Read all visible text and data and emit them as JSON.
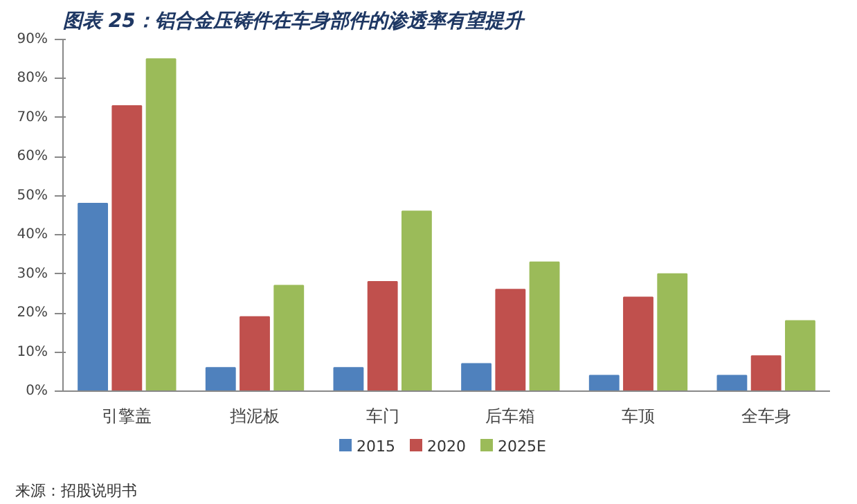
{
  "chart_data": {
    "type": "bar",
    "title": "图表 25：铝合金压铸件在车身部件的渗透率有望提升",
    "categories": [
      "引擎盖",
      "挡泥板",
      "车门",
      "后车箱",
      "车顶",
      "全车身"
    ],
    "series": [
      {
        "name": "2015",
        "color": "#4f81bd",
        "values": [
          48,
          6,
          6,
          7,
          4,
          4
        ]
      },
      {
        "name": "2020",
        "color": "#c0504d",
        "values": [
          73,
          19,
          28,
          26,
          24,
          9
        ]
      },
      {
        "name": "2025E",
        "color": "#9bbb59",
        "values": [
          85,
          27,
          46,
          33,
          30,
          18
        ]
      }
    ],
    "ylim": [
      0,
      90
    ],
    "yticks": [
      {
        "value": 0,
        "label": "0%"
      },
      {
        "value": 10,
        "label": "10%"
      },
      {
        "value": 20,
        "label": "20%"
      },
      {
        "value": 30,
        "label": "30%"
      },
      {
        "value": 40,
        "label": "40%"
      },
      {
        "value": 50,
        "label": "50%"
      },
      {
        "value": 60,
        "label": "60%"
      },
      {
        "value": 70,
        "label": "70%"
      },
      {
        "value": 80,
        "label": "80%"
      },
      {
        "value": 90,
        "label": "90%"
      }
    ],
    "grid": false,
    "legend": "bottom",
    "annotations": [
      "来源：招股说明书"
    ]
  }
}
